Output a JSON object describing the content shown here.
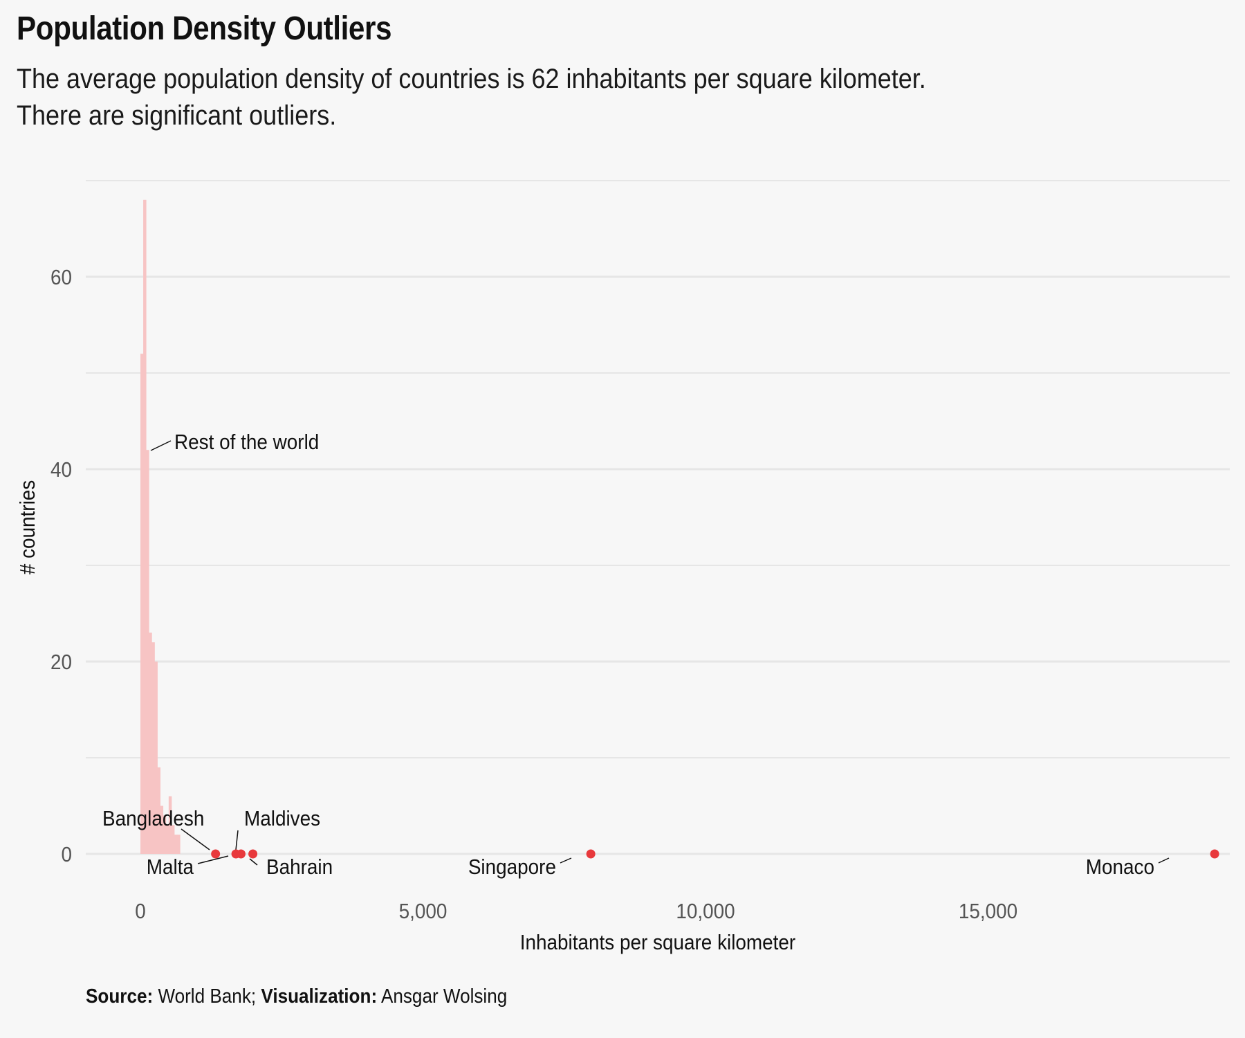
{
  "title": "Population Density Outliers",
  "subtitle": {
    "line1": "The average population density of countries is 62 inhabitants per square kilometer.",
    "line2": "There are significant outliers."
  },
  "caption": {
    "source_label": "Source:",
    "source_value": "World Bank;",
    "viz_label": "Visualization:",
    "viz_value": "Ansgar Wolsing"
  },
  "colors": {
    "background": "#f7f7f7",
    "bars": "#f7c4c4",
    "points": "#e8393c",
    "grid": "#e6e6e6",
    "tick_text": "#555555"
  },
  "chart_data": {
    "type": "histogram",
    "xlabel": "Inhabitants per square kilometer",
    "ylabel": "# countries",
    "xlim": [
      -1000,
      20000
    ],
    "ylim": [
      -3,
      70
    ],
    "x_ticks": [
      {
        "value": 0,
        "label": "0"
      },
      {
        "value": 5000,
        "label": "5,000"
      },
      {
        "value": 10000,
        "label": "10,000"
      },
      {
        "value": 15000,
        "label": "15,000"
      }
    ],
    "y_ticks": [
      {
        "value": 0,
        "label": "0"
      },
      {
        "value": 20,
        "label": "20"
      },
      {
        "value": 40,
        "label": "40"
      },
      {
        "value": 60,
        "label": "60"
      }
    ],
    "grid": true,
    "bins": [
      {
        "x0": 0,
        "x1": 50,
        "count": 52
      },
      {
        "x0": 50,
        "x1": 100,
        "count": 68
      },
      {
        "x0": 100,
        "x1": 150,
        "count": 42
      },
      {
        "x0": 150,
        "x1": 200,
        "count": 23
      },
      {
        "x0": 200,
        "x1": 250,
        "count": 22
      },
      {
        "x0": 250,
        "x1": 300,
        "count": 20
      },
      {
        "x0": 300,
        "x1": 350,
        "count": 9
      },
      {
        "x0": 350,
        "x1": 400,
        "count": 5
      },
      {
        "x0": 400,
        "x1": 450,
        "count": 4
      },
      {
        "x0": 450,
        "x1": 500,
        "count": 3
      },
      {
        "x0": 500,
        "x1": 550,
        "count": 6
      },
      {
        "x0": 550,
        "x1": 600,
        "count": 3
      },
      {
        "x0": 600,
        "x1": 650,
        "count": 2
      },
      {
        "x0": 650,
        "x1": 700,
        "count": 2
      }
    ],
    "bins_label": {
      "text": "Rest of the world",
      "x": 120,
      "y": 42
    },
    "outliers": [
      {
        "name": "Bangladesh",
        "x": 1330,
        "y": 0
      },
      {
        "name": "Malta",
        "x": 1690,
        "y": 0
      },
      {
        "name": "Maldives",
        "x": 1780,
        "y": 0
      },
      {
        "name": "Bahrain",
        "x": 1990,
        "y": 0
      },
      {
        "name": "Singapore",
        "x": 7970,
        "y": 0
      },
      {
        "name": "Monaco",
        "x": 19010,
        "y": 0
      }
    ]
  }
}
